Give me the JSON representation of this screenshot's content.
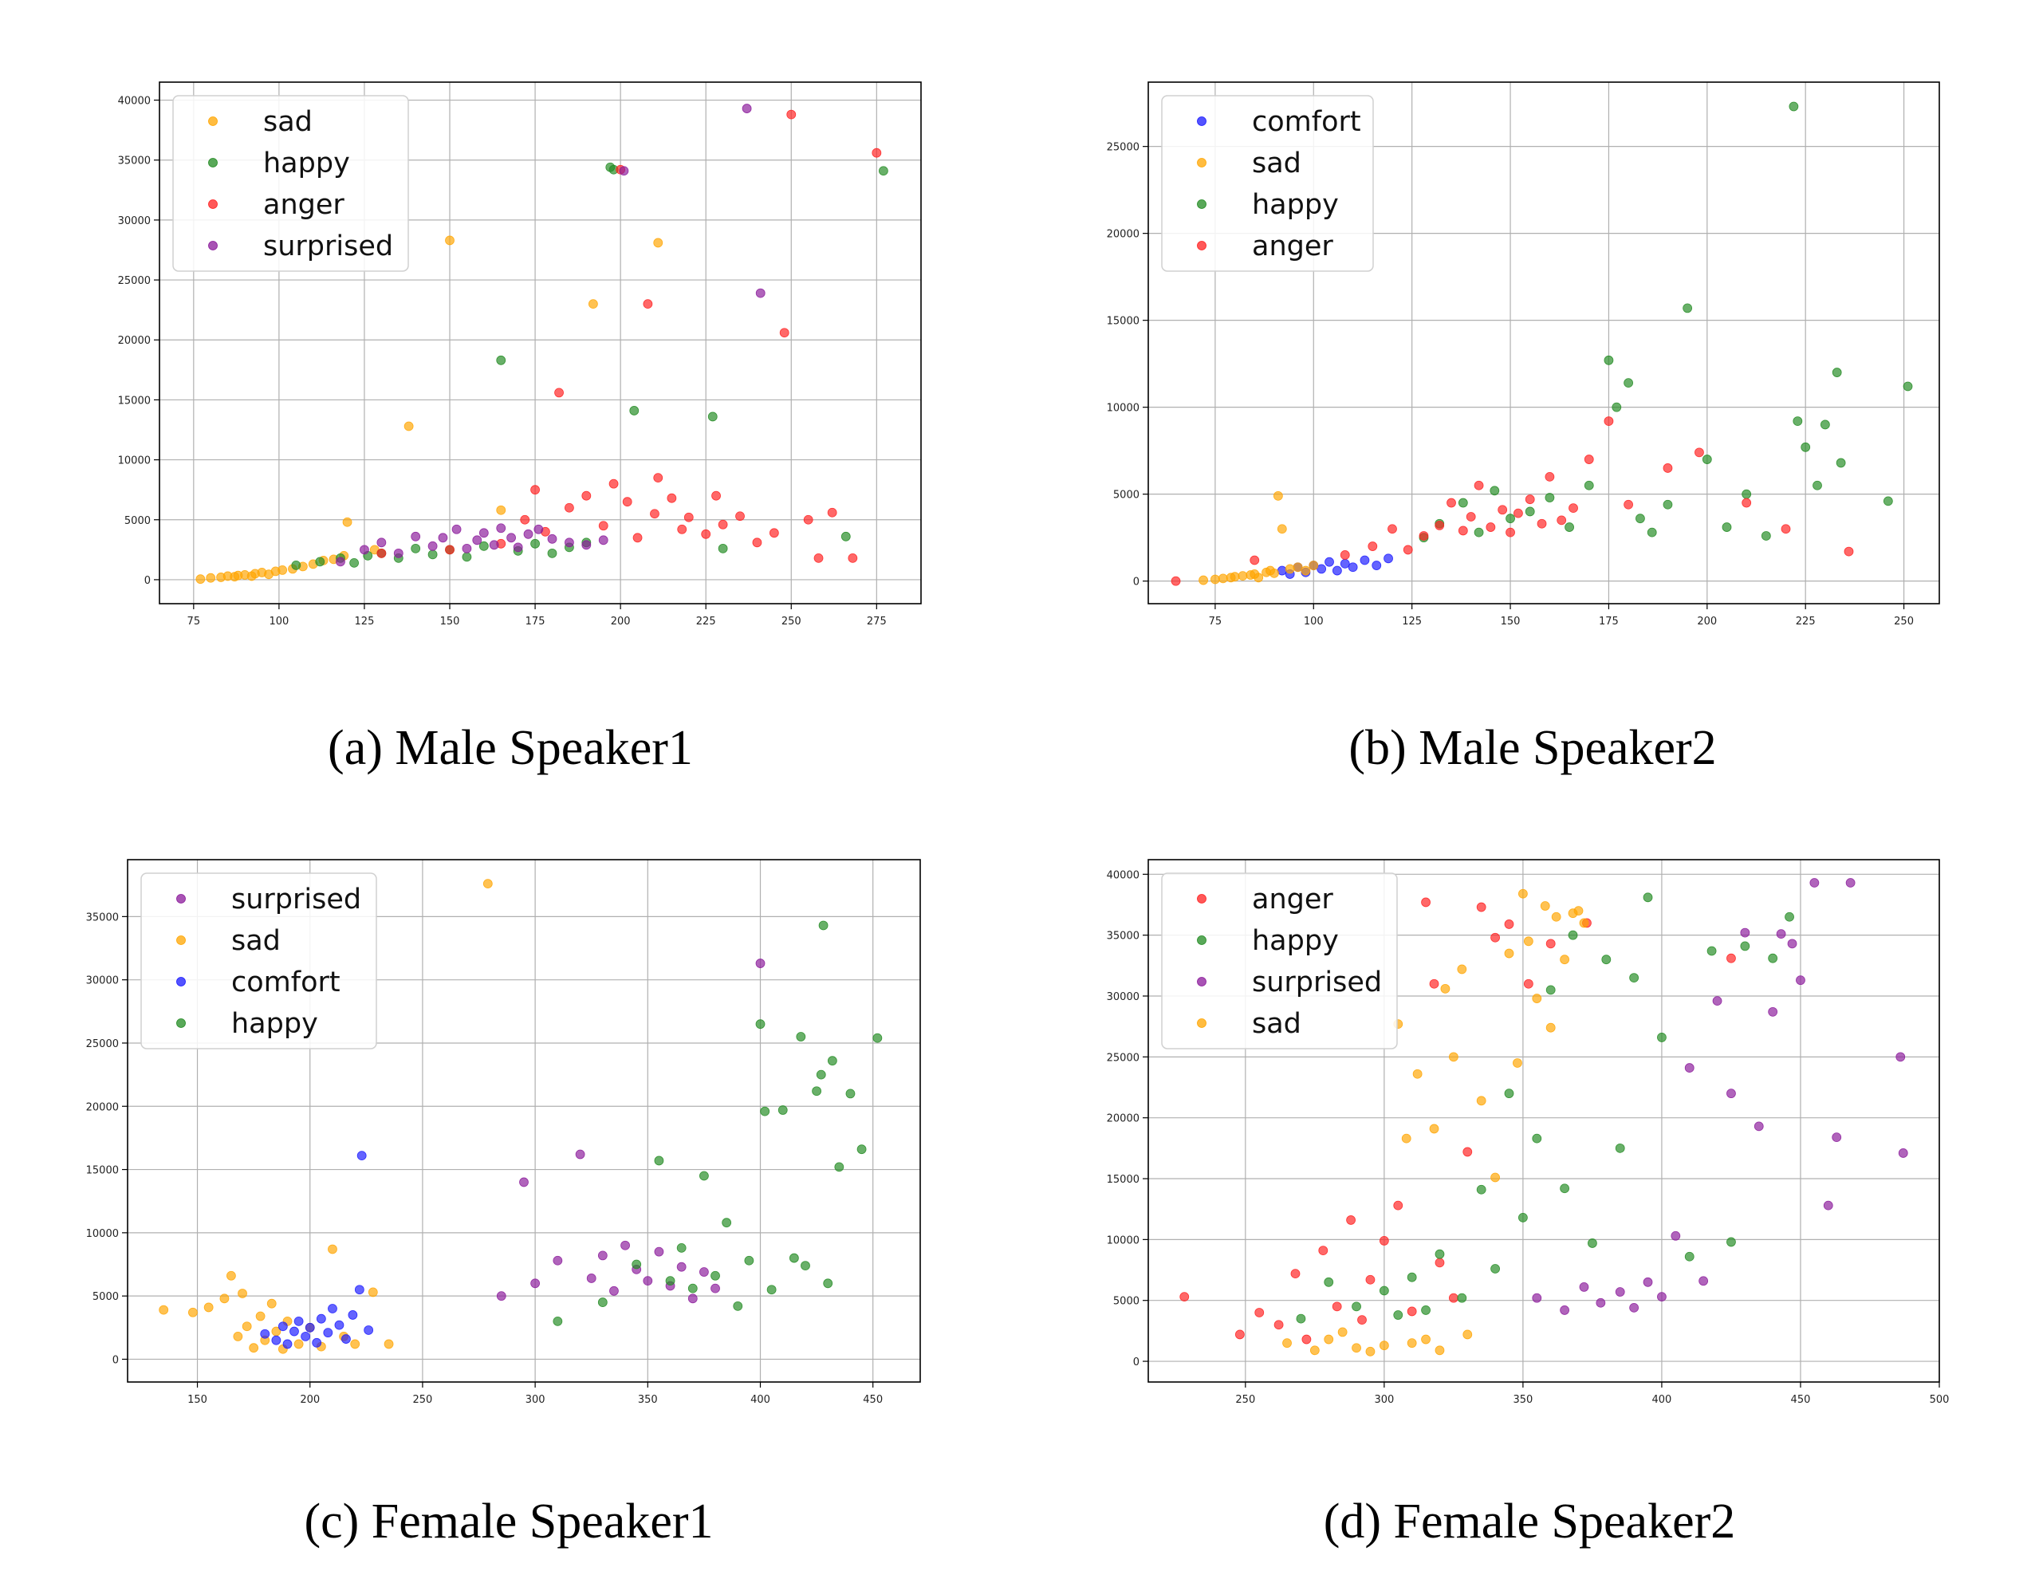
{
  "chart_data": [
    {
      "type": "scatter",
      "caption": "(a) Male Speaker1",
      "xlim": [
        65,
        288
      ],
      "ylim": [
        -2000,
        41500
      ],
      "xticks": [
        75,
        100,
        125,
        150,
        175,
        200,
        225,
        250,
        275
      ],
      "yticks": [
        0,
        5000,
        10000,
        15000,
        20000,
        25000,
        30000,
        35000,
        40000
      ],
      "grid": true,
      "legend_position": "upper-left",
      "series": [
        {
          "name": "sad",
          "color": "#FFA500",
          "x": [
            77,
            80,
            83,
            85,
            87,
            88,
            90,
            92,
            93,
            95,
            97,
            99,
            101,
            104,
            107,
            110,
            113,
            116,
            119,
            120,
            128,
            138,
            150,
            165,
            192,
            211
          ],
          "y": [
            50,
            150,
            200,
            300,
            250,
            350,
            400,
            300,
            500,
            600,
            450,
            700,
            800,
            900,
            1100,
            1300,
            1600,
            1700,
            2000,
            4800,
            2500,
            12800,
            28300,
            5800,
            23000,
            28100
          ]
        },
        {
          "name": "happy",
          "color": "#228B22",
          "x": [
            105,
            112,
            118,
            122,
            126,
            130,
            135,
            140,
            145,
            150,
            155,
            160,
            165,
            170,
            175,
            180,
            185,
            190,
            197,
            198,
            204,
            227,
            230,
            266,
            277
          ],
          "y": [
            1200,
            1500,
            1800,
            1400,
            2000,
            2200,
            1800,
            2600,
            2100,
            2500,
            1900,
            2800,
            18300,
            2400,
            3000,
            2200,
            2700,
            3100,
            34400,
            34200,
            14100,
            13600,
            2600,
            3600,
            34100
          ]
        },
        {
          "name": "anger",
          "color": "#FF2020",
          "x": [
            130,
            150,
            165,
            172,
            175,
            178,
            182,
            185,
            190,
            195,
            198,
            200,
            202,
            205,
            208,
            210,
            211,
            215,
            218,
            220,
            225,
            228,
            230,
            235,
            240,
            245,
            248,
            250,
            255,
            258,
            262,
            268,
            275
          ],
          "y": [
            2200,
            2500,
            3000,
            5000,
            7500,
            4000,
            15600,
            6000,
            7000,
            4500,
            8000,
            34200,
            6500,
            3500,
            23000,
            5500,
            8500,
            6800,
            4200,
            5200,
            3800,
            7000,
            4600,
            5300,
            3100,
            3900,
            20600,
            38800,
            5000,
            1800,
            5600,
            1800,
            35600
          ]
        },
        {
          "name": "surprised",
          "color": "#8B1A9B",
          "x": [
            118,
            125,
            130,
            135,
            140,
            145,
            148,
            152,
            155,
            158,
            160,
            163,
            165,
            168,
            170,
            173,
            176,
            180,
            185,
            190,
            195,
            201,
            237,
            241
          ],
          "y": [
            1500,
            2500,
            3100,
            2200,
            3600,
            2800,
            3500,
            4200,
            2600,
            3300,
            3900,
            2900,
            4300,
            3500,
            2700,
            3800,
            4200,
            3400,
            3100,
            2900,
            3300,
            34100,
            39300,
            23900
          ]
        }
      ]
    },
    {
      "type": "scatter",
      "caption": "(b) Male Speaker2",
      "xlim": [
        58,
        259
      ],
      "ylim": [
        -1300,
        28700
      ],
      "xticks": [
        75,
        100,
        125,
        150,
        175,
        200,
        225,
        250
      ],
      "yticks": [
        0,
        5000,
        10000,
        15000,
        20000,
        25000
      ],
      "grid": true,
      "legend_position": "upper-left",
      "series": [
        {
          "name": "comfort",
          "color": "#1A1AFF",
          "x": [
            92,
            94,
            96,
            98,
            100,
            102,
            104,
            106,
            108,
            110,
            113,
            116,
            119
          ],
          "y": [
            600,
            400,
            800,
            500,
            900,
            700,
            1100,
            600,
            1000,
            800,
            1200,
            900,
            1300
          ]
        },
        {
          "name": "sad",
          "color": "#FFA500",
          "x": [
            72,
            75,
            77,
            79,
            80,
            82,
            84,
            85,
            86,
            88,
            89,
            90,
            91,
            92,
            94,
            96,
            98,
            100
          ],
          "y": [
            50,
            100,
            150,
            200,
            250,
            300,
            350,
            400,
            200,
            500,
            600,
            450,
            4900,
            3000,
            700,
            800,
            600,
            900
          ]
        },
        {
          "name": "happy",
          "color": "#228B22",
          "x": [
            128,
            132,
            138,
            142,
            146,
            150,
            155,
            160,
            165,
            170,
            175,
            177,
            180,
            183,
            186,
            190,
            195,
            200,
            205,
            210,
            215,
            222,
            223,
            225,
            228,
            230,
            233,
            234,
            246,
            251
          ],
          "y": [
            2500,
            3300,
            4500,
            2800,
            5200,
            3600,
            4000,
            4800,
            3100,
            5500,
            12700,
            10000,
            11400,
            3600,
            2800,
            4400,
            15700,
            7000,
            3100,
            5000,
            2600,
            27300,
            9200,
            7700,
            5500,
            9000,
            12000,
            6800,
            4600,
            11200
          ]
        },
        {
          "name": "anger",
          "color": "#FF2020",
          "x": [
            65,
            85,
            108,
            115,
            120,
            124,
            128,
            132,
            135,
            138,
            140,
            142,
            145,
            148,
            150,
            152,
            155,
            158,
            160,
            163,
            166,
            170,
            175,
            180,
            190,
            198,
            210,
            220,
            236
          ],
          "y": [
            0,
            1200,
            1500,
            2000,
            3000,
            1800,
            2600,
            3200,
            4500,
            2900,
            3700,
            5500,
            3100,
            4100,
            2800,
            3900,
            4700,
            3300,
            6000,
            3500,
            4200,
            7000,
            9200,
            4400,
            6500,
            7400,
            4500,
            3000,
            1700
          ]
        }
      ]
    },
    {
      "type": "scatter",
      "caption": "(c) Female Speaker1",
      "xlim": [
        119,
        471
      ],
      "ylim": [
        -1800,
        39500
      ],
      "xticks": [
        150,
        200,
        250,
        300,
        350,
        400,
        450
      ],
      "yticks": [
        0,
        5000,
        10000,
        15000,
        20000,
        25000,
        30000,
        35000
      ],
      "grid": true,
      "legend_position": "upper-left",
      "series": [
        {
          "name": "surprised",
          "color": "#8B1A9B",
          "x": [
            285,
            295,
            300,
            310,
            320,
            325,
            330,
            335,
            340,
            345,
            350,
            355,
            360,
            365,
            370,
            375,
            380,
            400
          ],
          "y": [
            5000,
            14000,
            6000,
            7800,
            16200,
            6400,
            8200,
            5400,
            9000,
            7100,
            6200,
            8500,
            5800,
            7300,
            4800,
            6900,
            5600,
            31300
          ]
        },
        {
          "name": "sad",
          "color": "#FFA500",
          "x": [
            135,
            148,
            155,
            162,
            165,
            168,
            170,
            172,
            175,
            178,
            180,
            183,
            185,
            188,
            190,
            195,
            200,
            205,
            210,
            215,
            220,
            228,
            235,
            279
          ],
          "y": [
            3900,
            3700,
            4100,
            4800,
            6600,
            1800,
            5200,
            2600,
            900,
            3400,
            1500,
            4400,
            2200,
            800,
            3000,
            1200,
            2500,
            1000,
            8700,
            1800,
            1200,
            5300,
            1200,
            37600
          ]
        },
        {
          "name": "comfort",
          "color": "#1A1AFF",
          "x": [
            180,
            185,
            188,
            190,
            193,
            195,
            198,
            200,
            203,
            205,
            208,
            210,
            213,
            216,
            219,
            222,
            223,
            226
          ],
          "y": [
            2000,
            1500,
            2600,
            1200,
            2200,
            3000,
            1800,
            2500,
            1300,
            3200,
            2100,
            4000,
            2700,
            1600,
            3500,
            5500,
            16100,
            2300
          ]
        },
        {
          "name": "happy",
          "color": "#228B22",
          "x": [
            310,
            330,
            345,
            355,
            360,
            365,
            370,
            375,
            380,
            385,
            390,
            395,
            400,
            402,
            405,
            410,
            415,
            418,
            420,
            425,
            427,
            428,
            430,
            432,
            435,
            440,
            445,
            452
          ],
          "y": [
            3000,
            4500,
            7500,
            15700,
            6200,
            8800,
            5600,
            14500,
            6600,
            10800,
            4200,
            7800,
            26500,
            19600,
            5500,
            19700,
            8000,
            25500,
            7400,
            21200,
            22500,
            34300,
            6000,
            23600,
            15200,
            21000,
            16600,
            25400
          ]
        }
      ]
    },
    {
      "type": "scatter",
      "caption": "(d) Female Speaker2",
      "xlim": [
        215,
        500
      ],
      "ylim": [
        -1700,
        41200
      ],
      "xticks": [
        250,
        300,
        350,
        400,
        450,
        500
      ],
      "yticks": [
        0,
        5000,
        10000,
        15000,
        20000,
        25000,
        30000,
        35000,
        40000
      ],
      "grid": true,
      "legend_position": "upper-left",
      "series": [
        {
          "name": "anger",
          "color": "#FF2020",
          "x": [
            228,
            248,
            255,
            262,
            268,
            272,
            278,
            283,
            288,
            292,
            295,
            300,
            305,
            310,
            315,
            318,
            320,
            325,
            330,
            335,
            340,
            345,
            352,
            360,
            373,
            425
          ],
          "y": [
            5300,
            2200,
            4000,
            3000,
            7200,
            1800,
            9100,
            4500,
            11600,
            3400,
            6700,
            9900,
            12800,
            4100,
            37700,
            31000,
            8100,
            5200,
            17200,
            37300,
            34800,
            35900,
            31000,
            34300,
            36000,
            33100
          ]
        },
        {
          "name": "happy",
          "color": "#228B22",
          "x": [
            270,
            280,
            290,
            300,
            305,
            310,
            315,
            320,
            328,
            335,
            340,
            345,
            350,
            355,
            360,
            365,
            368,
            375,
            380,
            385,
            390,
            395,
            400,
            410,
            418,
            425,
            430,
            440,
            446
          ],
          "y": [
            3500,
            6500,
            4500,
            5800,
            3800,
            6900,
            4200,
            8800,
            5200,
            14100,
            7600,
            22000,
            11800,
            18300,
            30500,
            14200,
            35000,
            9700,
            33000,
            17500,
            31500,
            38100,
            26600,
            8600,
            33700,
            9800,
            34100,
            33100,
            36500
          ]
        },
        {
          "name": "surprised",
          "color": "#8B1A9B",
          "x": [
            355,
            365,
            372,
            378,
            385,
            390,
            395,
            400,
            405,
            410,
            415,
            420,
            425,
            430,
            435,
            440,
            443,
            447,
            450,
            455,
            460,
            463,
            468,
            486,
            487
          ],
          "y": [
            5200,
            4200,
            6100,
            4800,
            5700,
            4400,
            6500,
            5300,
            10300,
            24100,
            6600,
            29600,
            22000,
            35200,
            19300,
            28700,
            35100,
            34300,
            31300,
            39300,
            12800,
            18400,
            39300,
            25000,
            17100
          ]
        },
        {
          "name": "sad",
          "color": "#FFA500",
          "x": [
            265,
            275,
            280,
            285,
            290,
            295,
            300,
            305,
            308,
            310,
            312,
            315,
            318,
            320,
            322,
            325,
            328,
            330,
            335,
            340,
            345,
            348,
            350,
            352,
            355,
            358,
            360,
            362,
            365,
            368,
            370,
            372
          ],
          "y": [
            1500,
            900,
            1800,
            2400,
            1100,
            800,
            1300,
            27700,
            18300,
            1500,
            23600,
            1800,
            19100,
            900,
            30600,
            25000,
            32200,
            2200,
            21400,
            15100,
            33500,
            24500,
            38400,
            34500,
            29800,
            37400,
            27400,
            36500,
            33000,
            36800,
            37000,
            36000
          ]
        }
      ]
    }
  ]
}
